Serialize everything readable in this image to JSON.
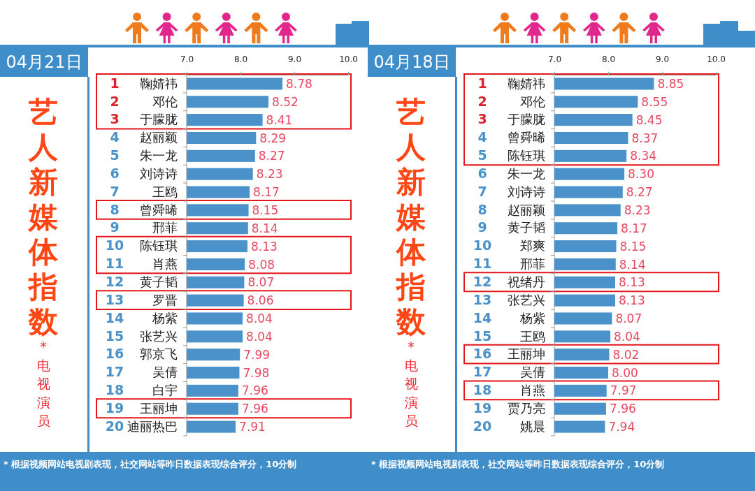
{
  "chart_data": [
    {
      "type": "bar",
      "orientation": "horizontal",
      "title": "艺人新媒体指数",
      "subtitle": "04月21日",
      "categories": [
        "1 鞠婧祎",
        "2 邓伦",
        "3 于朦胧",
        "4 赵丽颖",
        "5 朱一龙",
        "6 刘诗诗",
        "7 王鸥",
        "8 曾舜晞",
        "9 邢菲",
        "10 陈钰琪",
        "11 肖燕",
        "12 黄子韬",
        "13 罗晋",
        "14 杨紫",
        "15 张艺兴",
        "16 郭京飞",
        "17 吴倩",
        "18 白宇",
        "19 王丽坤",
        "20 迪丽热巴"
      ],
      "values": [
        8.78,
        8.52,
        8.41,
        8.29,
        8.27,
        8.23,
        8.17,
        8.15,
        8.14,
        8.13,
        8.08,
        8.07,
        8.06,
        8.04,
        8.04,
        7.99,
        7.98,
        7.96,
        7.96,
        7.91
      ],
      "color": "#4a92c9",
      "data_labels": true,
      "xlim": [
        7,
        10
      ],
      "xticks": [
        {
          "value": 7,
          "label": "7.0"
        },
        {
          "value": 8,
          "label": "8.0"
        },
        {
          "value": 9,
          "label": "9.0"
        },
        {
          "value": 10,
          "label": "10.0"
        }
      ],
      "annotations": [
        "* 电视演员",
        "* 根据视频网站电视剧表现，社交网站等昨日数据表现综合评分，10分制"
      ]
    },
    {
      "type": "bar",
      "orientation": "horizontal",
      "title": "艺人新媒体指数",
      "subtitle": "04月18日",
      "categories": [
        "1 鞠婧祎",
        "2 邓伦",
        "3 于朦胧",
        "4 曾舜晞",
        "5 陈钰琪",
        "6 朱一龙",
        "7 刘诗诗",
        "8 赵丽颖",
        "9 黄子韬",
        "10 郑爽",
        "11 邢菲",
        "12 祝绪丹",
        "13 张艺兴",
        "14 杨紫",
        "15 王鸥",
        "16 王丽坤",
        "17 吴倩",
        "18 肖燕",
        "19 贾乃亮",
        "20 姚晨"
      ],
      "values": [
        8.85,
        8.55,
        8.45,
        8.37,
        8.34,
        8.3,
        8.27,
        8.23,
        8.17,
        8.15,
        8.14,
        8.13,
        8.13,
        8.07,
        8.04,
        8.02,
        8.0,
        7.97,
        7.96,
        7.94
      ],
      "value_labels": [
        "8.85",
        "8.55",
        "8.45",
        "8.37",
        "8.34",
        "8.30",
        "8.27",
        "8.23",
        "8.17",
        "8.15",
        "8.14",
        "8.13",
        "8.13",
        "8.07",
        "8.04",
        "8.02",
        "8.00",
        "7.97",
        "7.96",
        "7.94"
      ],
      "color": "#4a92c9",
      "xlim": [
        7,
        10
      ],
      "xticks": [
        {
          "value": 7,
          "label": "7.0"
        },
        {
          "value": 8,
          "label": "8.0"
        },
        {
          "value": 9,
          "label": "9.0"
        },
        {
          "value": 10,
          "label": "10.0"
        }
      ],
      "annotations": [
        "* 电视演员",
        "* 根据视频网站电视剧表现，社交网站等昨日数据表现综合评分，10分制"
      ]
    }
  ]
}
